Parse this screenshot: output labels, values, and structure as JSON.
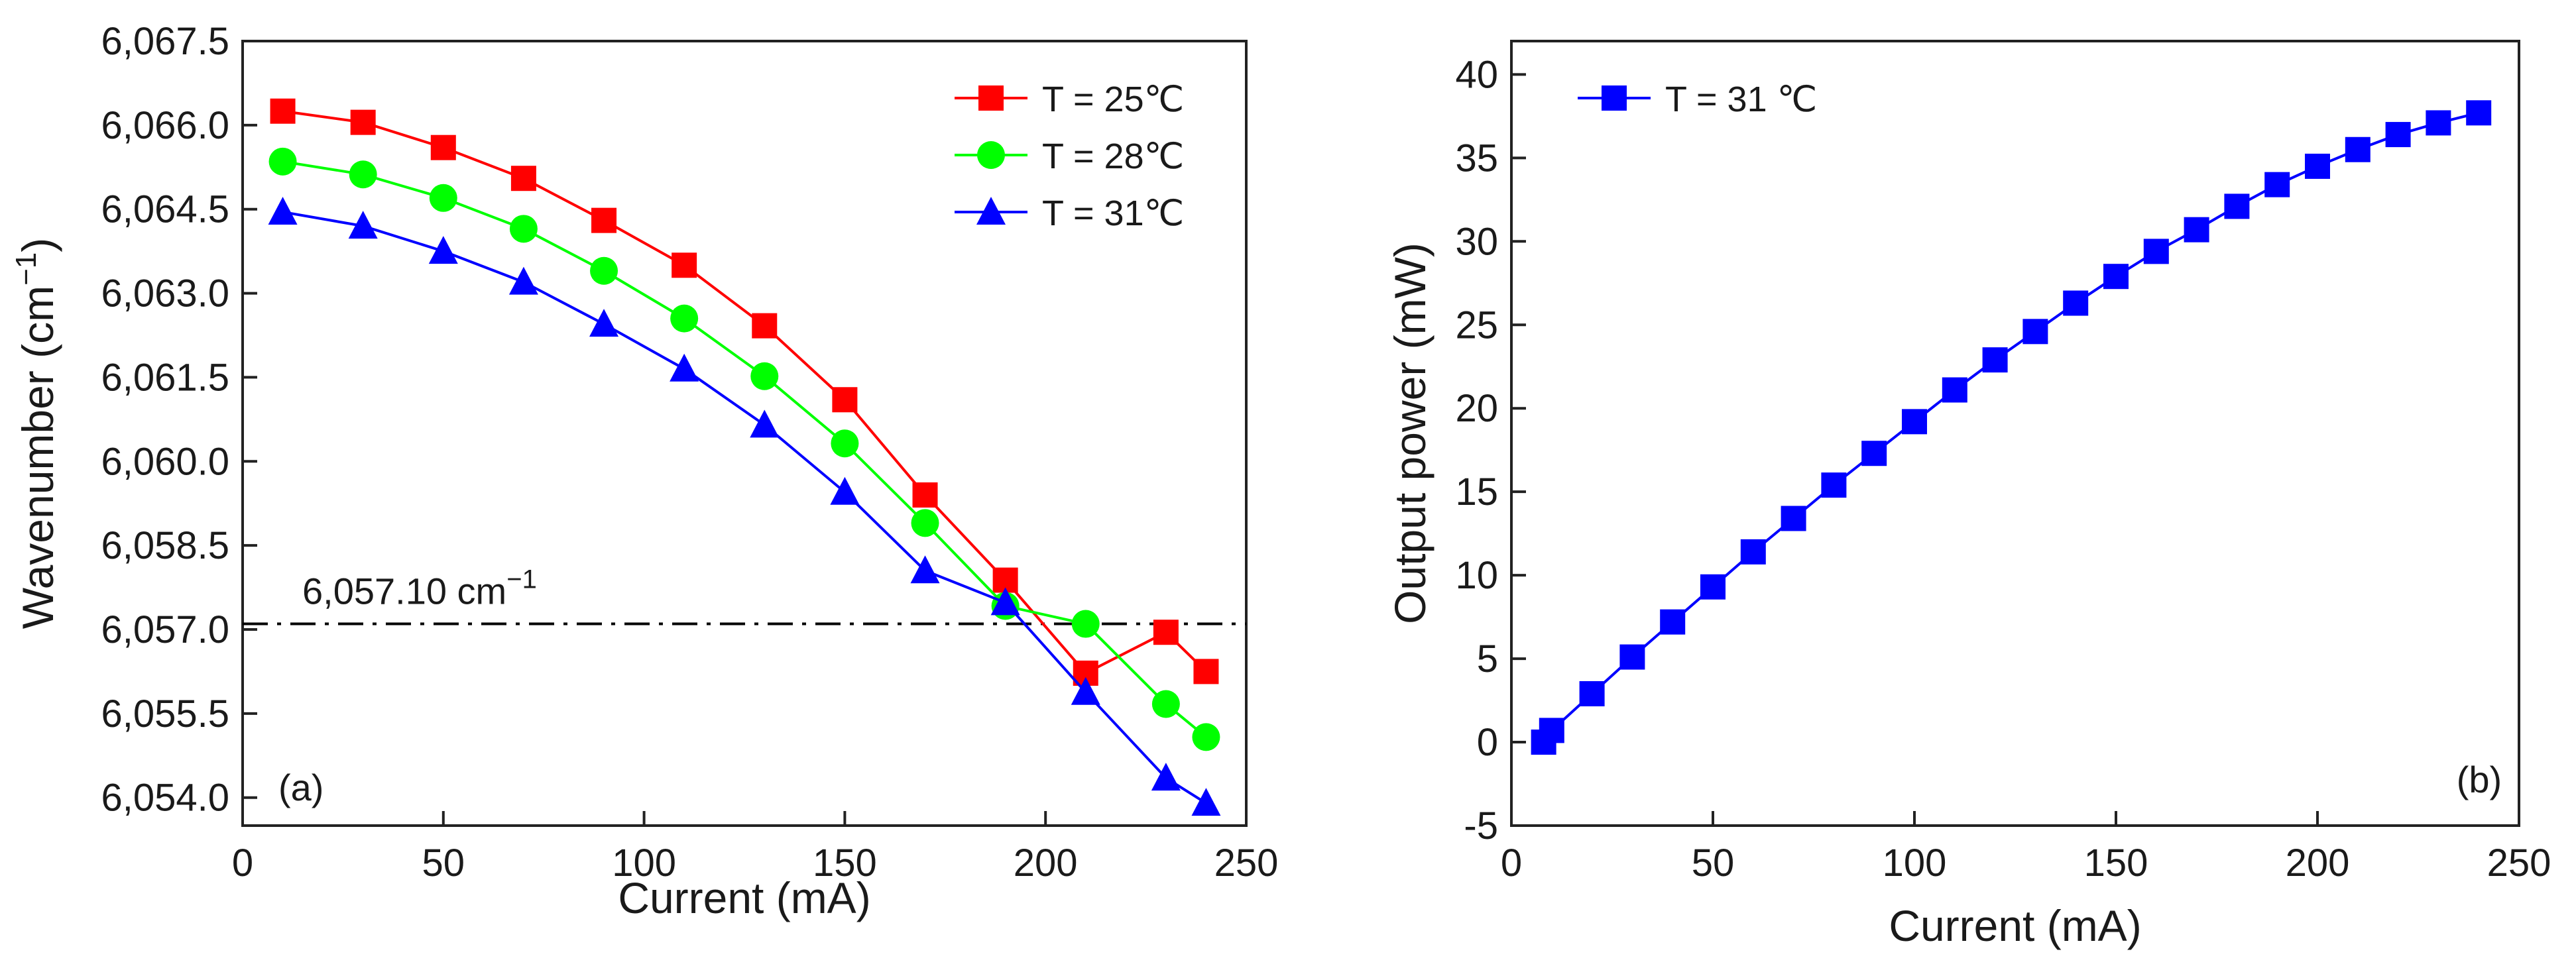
{
  "chart_data": [
    {
      "panel": "a",
      "type": "line",
      "panel_label": "(a)",
      "title": "",
      "xlabel": "Current (mA)",
      "ylabel": "Wavenumber (cm",
      "ylabel_exponent": "−1",
      "ylabel_close": ")",
      "xlim": [
        0,
        250
      ],
      "ylim": [
        6053.5,
        6067.5
      ],
      "xticks": [
        0,
        50,
        100,
        150,
        200,
        250
      ],
      "xtick_labels": [
        "0",
        "50",
        "100",
        "150",
        "200",
        "250"
      ],
      "yticks": [
        6054.0,
        6055.5,
        6057.0,
        6058.5,
        6060.0,
        6061.5,
        6063.0,
        6064.5,
        6066.0,
        6067.5
      ],
      "ytick_labels": [
        "6,054.0",
        "6,055.5",
        "6,057.0",
        "6,058.5",
        "6,060.0",
        "6,061.5",
        "6,063.0",
        "6,064.5",
        "6,066.0",
        "6,067.5"
      ],
      "legend_position": "top-right",
      "x": [
        10,
        30,
        50,
        70,
        90,
        110,
        130,
        150,
        170,
        190,
        210,
        230,
        240
      ],
      "series": [
        {
          "name": "T = 25℃",
          "color": "#ff0000",
          "marker": "square",
          "values": [
            6066.25,
            6066.05,
            6065.6,
            6065.05,
            6064.3,
            6063.5,
            6062.42,
            6061.1,
            6059.4,
            6057.88,
            6056.22,
            6056.95,
            6056.25
          ]
        },
        {
          "name": "T = 28℃",
          "color": "#00ff00",
          "marker": "circle",
          "values": [
            6065.35,
            6065.12,
            6064.7,
            6064.15,
            6063.4,
            6062.55,
            6061.52,
            6060.32,
            6058.9,
            6057.42,
            6057.1,
            6055.67,
            6055.08
          ]
        },
        {
          "name": "T = 31℃",
          "color": "#0000ff",
          "marker": "triangle",
          "values": [
            6064.45,
            6064.2,
            6063.75,
            6063.2,
            6062.45,
            6061.65,
            6060.65,
            6059.45,
            6058.05,
            6057.48,
            6055.88,
            6054.35,
            6053.9
          ]
        }
      ],
      "reference_line": {
        "y": 6057.1,
        "label": "6,057.10 cm",
        "label_exponent": "−1",
        "color": "#000000",
        "style": "dash-dot"
      }
    },
    {
      "panel": "b",
      "type": "line",
      "panel_label": "(b)",
      "title": "",
      "xlabel": "Current (mA)",
      "ylabel": "Output power (mW)",
      "xlim": [
        0,
        250
      ],
      "ylim": [
        -5,
        42
      ],
      "xticks": [
        0,
        50,
        100,
        150,
        200,
        250
      ],
      "xtick_labels": [
        "0",
        "50",
        "100",
        "150",
        "200",
        "250"
      ],
      "yticks": [
        -5,
        0,
        5,
        10,
        15,
        20,
        25,
        30,
        35,
        40
      ],
      "ytick_labels": [
        "-5",
        "0",
        "5",
        "10",
        "15",
        "20",
        "25",
        "30",
        "35",
        "40"
      ],
      "legend_position": "top-left",
      "x": [
        8,
        10,
        20,
        30,
        40,
        50,
        60,
        70,
        80,
        90,
        100,
        110,
        120,
        130,
        140,
        150,
        160,
        170,
        180,
        190,
        200,
        210,
        220,
        230,
        240
      ],
      "series": [
        {
          "name": "T = 31 ℃",
          "color": "#0000ff",
          "marker": "square",
          "values": [
            0.0,
            0.7,
            2.9,
            5.1,
            7.2,
            9.3,
            11.4,
            13.4,
            15.4,
            17.3,
            19.2,
            21.1,
            22.9,
            24.6,
            26.3,
            27.9,
            29.4,
            30.7,
            32.1,
            33.4,
            34.5,
            35.5,
            36.4,
            37.1,
            37.7
          ]
        }
      ]
    }
  ]
}
